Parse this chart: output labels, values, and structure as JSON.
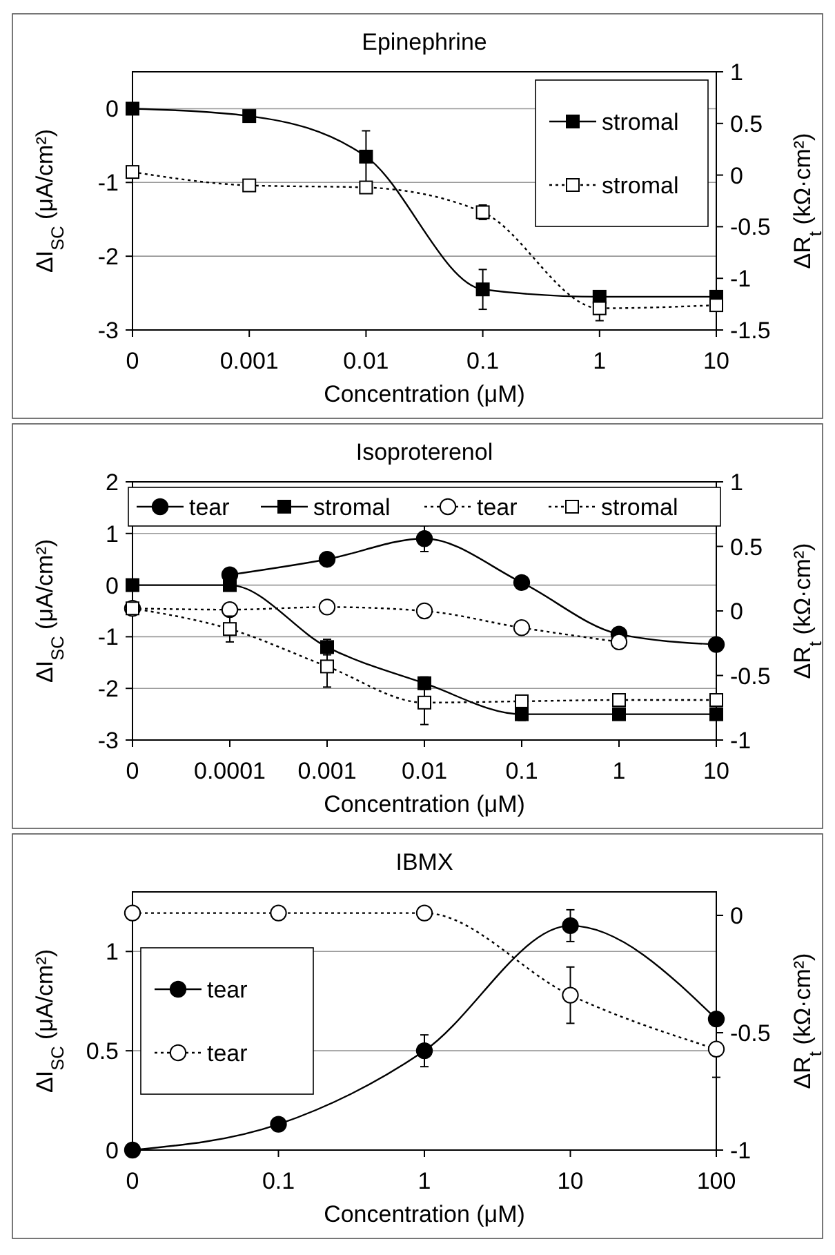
{
  "chart_data": [
    {
      "type": "line",
      "title": "Epinephrine",
      "xlabel": "Concentration (μM)",
      "ylabel": "ΔI$_{SC}$ (μA/cm²)",
      "y2label": "ΔR$_{t}$ (kΩ·cm²)",
      "categories": [
        "0",
        "0.001",
        "0.01",
        "0.1",
        "1",
        "10"
      ],
      "ylim": [
        -3,
        0.5
      ],
      "yticks": [
        -3,
        -2,
        -1,
        0
      ],
      "y2lim": [
        -1.5,
        1
      ],
      "y2ticks": [
        -1.5,
        -1,
        -0.5,
        0,
        0.5,
        1
      ],
      "grid": "y",
      "legend": "top right",
      "series": [
        {
          "name": "stromal",
          "color": "#000000",
          "marker": "square",
          "line_style": "solid",
          "values": [
            0,
            -0.1,
            -0.65,
            -2.45,
            -2.55,
            -2.55
          ],
          "errors": [
            null,
            null,
            0.35,
            0.27,
            null,
            null
          ]
        },
        {
          "name": "stromal",
          "color": "#000000",
          "marker": "square",
          "line_style": "dotted",
          "axis": "y2",
          "values": [
            0.03,
            -0.1,
            -0.12,
            -0.36,
            -1.29,
            -1.26
          ],
          "errors": [
            null,
            null,
            null,
            0.07,
            0.12,
            null
          ]
        }
      ]
    },
    {
      "type": "line",
      "title": "Isoproterenol",
      "xlabel": "Concentration (μM)",
      "ylabel": "ΔI$_{SC}$ (μA/cm²)",
      "y2label": "ΔR$_{t}$ (kΩ·cm²)",
      "categories": [
        "0",
        "0.0001",
        "0.001",
        "0.01",
        "0.1",
        "1",
        "10"
      ],
      "ylim": [
        -3,
        2
      ],
      "yticks": [
        -3,
        -2,
        -1,
        0,
        1,
        2
      ],
      "y2lim": [
        -1,
        1
      ],
      "y2ticks": [
        -1,
        -0.5,
        0,
        0.5,
        1
      ],
      "grid": "y",
      "legend": "top",
      "series": [
        {
          "name": "tear",
          "color": "#000000",
          "marker": "circle",
          "line_style": "solid",
          "values": [
            null,
            0.2,
            0.5,
            0.9,
            0.05,
            -0.95,
            -1.15
          ],
          "errors": [
            null,
            null,
            null,
            0.25,
            null,
            0.12,
            null
          ]
        },
        {
          "name": "stromal",
          "color": "#000000",
          "marker": "square",
          "line_style": "solid",
          "values": [
            0,
            0,
            -1.2,
            -1.9,
            -2.5,
            -2.5,
            -2.5
          ],
          "errors": [
            null,
            0.1,
            0.15,
            0.12,
            0.12,
            null,
            null
          ]
        },
        {
          "name": "tear",
          "color": "#000000",
          "marker": "circle",
          "line_style": "dotted",
          "axis": "y2",
          "values": [
            0.02,
            0.01,
            0.03,
            0,
            -0.13,
            -0.24,
            null
          ],
          "errors": [
            null,
            0.05,
            null,
            null,
            0.05,
            null,
            null
          ]
        },
        {
          "name": "stromal",
          "color": "#000000",
          "marker": "square",
          "line_style": "dotted",
          "axis": "y2",
          "values": [
            0.02,
            -0.14,
            -0.43,
            -0.71,
            -0.7,
            -0.69,
            -0.69
          ],
          "errors": [
            null,
            0.1,
            0.16,
            0.17,
            null,
            null,
            null
          ]
        }
      ]
    },
    {
      "type": "line",
      "title": "IBMX",
      "xlabel": "Concentration (μM)",
      "ylabel": "ΔI$_{SC}$ (μA/cm²)",
      "y2label": "ΔR$_{t}$ (kΩ·cm²)",
      "categories": [
        "0",
        "0.1",
        "1",
        "10",
        "100"
      ],
      "ylim": [
        0,
        1.3
      ],
      "yticks": [
        0,
        0.5,
        1
      ],
      "y2lim": [
        -1,
        0.1
      ],
      "y2ticks": [
        -1,
        -0.5,
        0
      ],
      "grid": "y",
      "legend": "left",
      "series": [
        {
          "name": "tear",
          "color": "#000000",
          "marker": "circle",
          "line_style": "solid",
          "values": [
            0,
            0.13,
            0.5,
            1.13,
            0.66
          ],
          "errors": [
            null,
            null,
            0.08,
            0.08,
            null
          ]
        },
        {
          "name": "tear",
          "color": "#000000",
          "marker": "circle",
          "line_style": "dotted",
          "axis": "y2",
          "values": [
            0.01,
            0.01,
            0.01,
            -0.34,
            -0.57
          ],
          "errors": [
            null,
            null,
            null,
            0.12,
            0.12
          ]
        }
      ]
    }
  ]
}
